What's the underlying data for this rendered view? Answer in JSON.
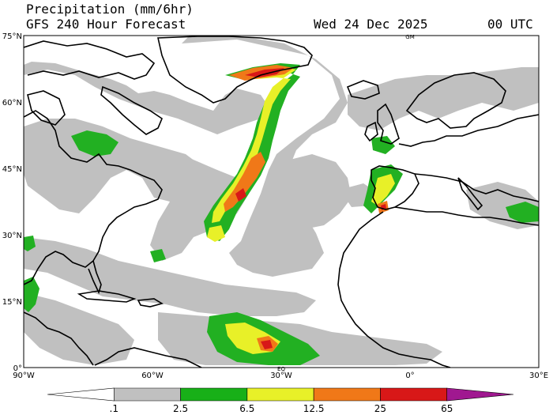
{
  "header": {
    "title": "Precipitation (mm/6hr)",
    "subtitle": "GFS 240 Hour Forecast",
    "valid_date": "Wed 24 Dec 2025",
    "valid_time": "00 UTC"
  },
  "map": {
    "lat_labels": [
      "75°N",
      "60°N",
      "45°N",
      "30°N",
      "15°N",
      "0°"
    ],
    "lon_labels": [
      "90°W",
      "60°W",
      "30°W",
      "0°",
      "30°E"
    ],
    "extent": {
      "lon_min": -90,
      "lon_max": 30,
      "lat_min": 0,
      "lat_max": 75
    },
    "corner_marks": [
      "GM",
      "EQ"
    ]
  },
  "legend": {
    "labels": [
      ".1",
      "2.5",
      "6.5",
      "12.5",
      "25",
      "65"
    ],
    "colors": [
      "#ffffff",
      "#c0c0c0",
      "#18b018",
      "#e8f028",
      "#f07818",
      "#d81818",
      "#a01890"
    ]
  },
  "colors": {
    "land_outline": "#000000",
    "precip_light": "#c0c0c0",
    "precip_green": "#22b022",
    "precip_yellow": "#e8f028",
    "precip_orange": "#f07818",
    "precip_red": "#d81818"
  }
}
